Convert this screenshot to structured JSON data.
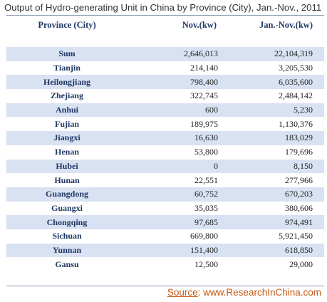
{
  "chart_data": {
    "type": "table",
    "title": "Output of Hydro-generating Unit in China by Province (City), Jan.-Nov., 2011",
    "columns": [
      "Province (City)",
      "Nov.(kw)",
      "Jan.-Nov.(kw)"
    ],
    "rows": [
      [
        "Sum",
        "2,646,013",
        "22,104,319"
      ],
      [
        "Tianjin",
        "214,140",
        "3,205,530"
      ],
      [
        "Heilongjiang",
        "798,400",
        "6,035,600"
      ],
      [
        "Zhejiang",
        "322,745",
        "2,484,142"
      ],
      [
        "Anhui",
        "600",
        "5,230"
      ],
      [
        "Fujian",
        "189,975",
        "1,130,376"
      ],
      [
        "Jiangxi",
        "16,630",
        "183,029"
      ],
      [
        "Henan",
        "53,800",
        "179,696"
      ],
      [
        "Hubei",
        "0",
        "8,150"
      ],
      [
        "Hunan",
        "22,551",
        "277,966"
      ],
      [
        "Guangdong",
        "60,752",
        "670,203"
      ],
      [
        "Guangxi",
        "35,035",
        "380,606"
      ],
      [
        "Chongqing",
        "97,685",
        "974,491"
      ],
      [
        "Sichuan",
        "669,800",
        "5,921,450"
      ],
      [
        "Yunnan",
        "151,400",
        "618,850"
      ],
      [
        "Gansu",
        "12,500",
        "29,000"
      ]
    ],
    "source_label": "Source",
    "source_text": ":  www.ResearchInChina.com"
  },
  "colors": {
    "header_text": "#1f3864",
    "band_fill": "#d9e2f3",
    "source_text": "#c55a11"
  }
}
